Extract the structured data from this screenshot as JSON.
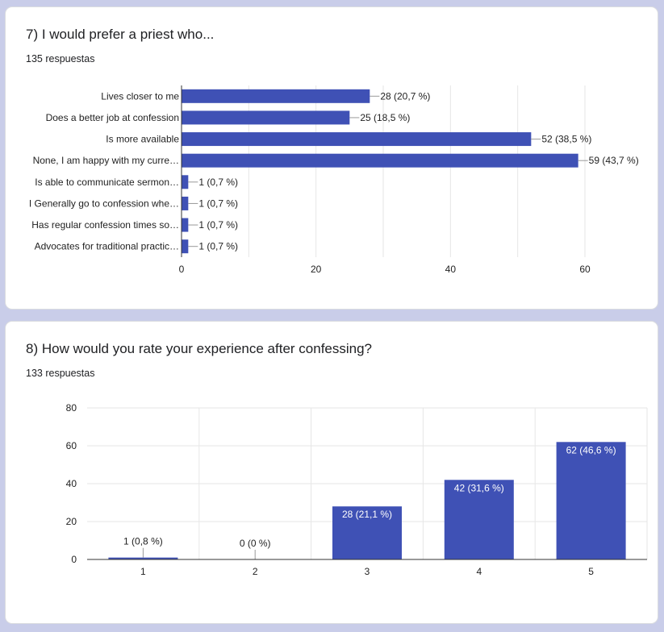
{
  "colors": {
    "bar": "#3f51b5",
    "grid": "#e6e6e6",
    "axis": "#333333",
    "text": "#222222",
    "page_bg": "#c9cde9"
  },
  "questions": [
    {
      "title": "7) I would prefer a priest who...",
      "count": "135 respuestas"
    },
    {
      "title": "8) How would you rate your experience after confessing?",
      "count": "133 respuestas"
    }
  ],
  "chart_data": [
    {
      "type": "bar",
      "orientation": "horizontal",
      "categories": [
        "Lives closer to me",
        "Does a better job at confession",
        "Is more available",
        "None, I am happy with my curre…",
        "Is able to communicate sermon…",
        "I Generally go to confession whe…",
        "Has regular confession times so…",
        "Advocates for traditional practic…"
      ],
      "values": [
        28,
        25,
        52,
        59,
        1,
        1,
        1,
        1
      ],
      "data_labels": [
        "28 (20,7 %)",
        "25 (18,5 %)",
        "52 (38,5 %)",
        "59 (43,7 %)",
        "1 (0,7 %)",
        "1 (0,7 %)",
        "1 (0,7 %)",
        "1 (0,7 %)"
      ],
      "xlim": [
        0,
        60
      ],
      "xticks": [
        0,
        20,
        40,
        60
      ],
      "grid": true
    },
    {
      "type": "bar",
      "orientation": "vertical",
      "categories": [
        "1",
        "2",
        "3",
        "4",
        "5"
      ],
      "values": [
        1,
        0,
        28,
        42,
        62
      ],
      "data_labels": [
        "1 (0,8 %)",
        "0 (0 %)",
        "28 (21,1 %)",
        "42 (31,6 %)",
        "62 (46,6 %)"
      ],
      "ylim": [
        0,
        80
      ],
      "yticks": [
        0,
        20,
        40,
        60,
        80
      ],
      "grid": true
    }
  ]
}
